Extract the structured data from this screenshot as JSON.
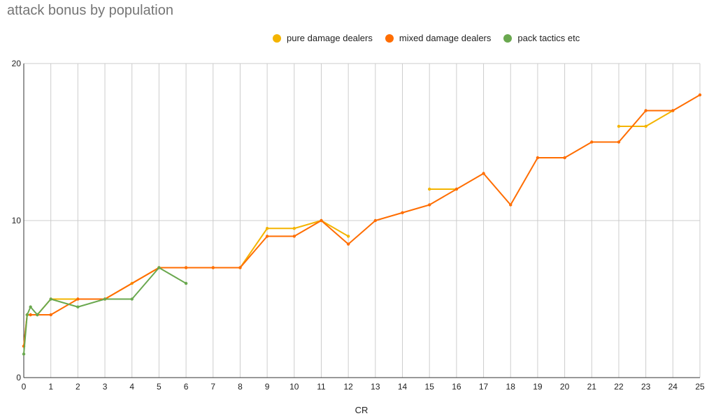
{
  "chart_data": {
    "type": "line",
    "title": "attack bonus by population",
    "xlabel": "CR",
    "ylabel": "",
    "xlim": [
      0,
      25
    ],
    "ylim": [
      0,
      20
    ],
    "x_ticks": [
      "0",
      "1",
      "2",
      "3",
      "4",
      "5",
      "6",
      "7",
      "8",
      "9",
      "10",
      "11",
      "12",
      "13",
      "14",
      "15",
      "16",
      "17",
      "18",
      "19",
      "20",
      "21",
      "22",
      "23",
      "24",
      "25"
    ],
    "y_ticks": [
      "0",
      "10",
      "20"
    ],
    "grid": true,
    "legend_position": "top",
    "series": [
      {
        "name": "pure damage dealers",
        "color": "#f4b400",
        "segments": [
          [
            [
              0,
              2
            ],
            [
              0.125,
              4
            ],
            [
              0.25,
              4
            ],
            [
              0.5,
              4
            ],
            [
              1,
              5
            ],
            [
              2,
              5
            ],
            [
              3,
              5
            ],
            [
              4,
              6
            ],
            [
              5,
              7
            ],
            [
              6,
              7
            ],
            [
              7,
              7
            ],
            [
              8,
              7
            ],
            [
              9,
              9.5
            ],
            [
              10,
              9.5
            ],
            [
              11,
              10
            ],
            [
              12,
              9
            ]
          ],
          [
            [
              15,
              12
            ],
            [
              16,
              12
            ]
          ],
          [
            [
              22,
              16
            ],
            [
              23,
              16
            ],
            [
              24,
              17
            ]
          ]
        ]
      },
      {
        "name": "mixed damage dealers",
        "color": "#ff6d01",
        "segments": [
          [
            [
              0,
              2
            ],
            [
              0.125,
              4
            ],
            [
              0.25,
              4
            ],
            [
              0.5,
              4
            ],
            [
              1,
              4
            ],
            [
              2,
              5
            ],
            [
              3,
              5
            ],
            [
              5,
              7
            ],
            [
              6,
              7
            ],
            [
              7,
              7
            ],
            [
              8,
              7
            ],
            [
              9,
              9
            ],
            [
              10,
              9
            ],
            [
              11,
              10
            ],
            [
              12,
              8.5
            ],
            [
              13,
              10
            ],
            [
              14,
              10.5
            ],
            [
              15,
              11
            ],
            [
              16,
              12
            ],
            [
              17,
              13
            ],
            [
              18,
              11
            ],
            [
              19,
              14
            ],
            [
              20,
              14
            ],
            [
              21,
              15
            ],
            [
              22,
              15
            ],
            [
              23,
              17
            ],
            [
              24,
              17
            ],
            [
              25,
              18
            ]
          ]
        ]
      },
      {
        "name": "pack tactics etc",
        "color": "#6aa84f",
        "segments": [
          [
            [
              0,
              1.5
            ],
            [
              0.125,
              4
            ],
            [
              0.25,
              4.5
            ],
            [
              0.5,
              4
            ],
            [
              1,
              5
            ],
            [
              2,
              4.5
            ],
            [
              3,
              5
            ],
            [
              4,
              5
            ],
            [
              5,
              7
            ],
            [
              6,
              6
            ]
          ]
        ]
      }
    ]
  }
}
